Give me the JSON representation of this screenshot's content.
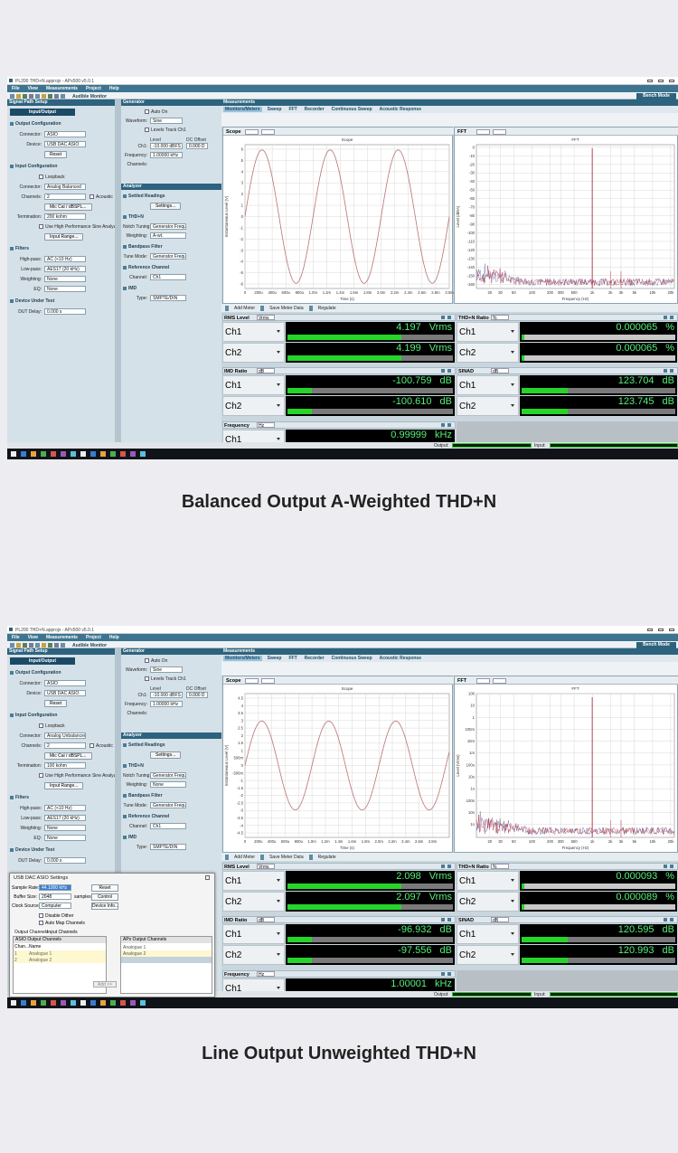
{
  "screens": [
    {
      "title_bar": "PL200 THD+N.approjx - APx500 v5.0.1",
      "menu": [
        "File",
        "View",
        "Measurements",
        "Project",
        "Help"
      ],
      "toolbar": {
        "monitor": "Audible Monitor",
        "bench": "Bench Mode"
      },
      "signal_path": {
        "header": "Signal Path Setup",
        "tab": "Input/Output",
        "rows": [
          {
            "section": "Output Configuration"
          },
          {
            "label": "Connector:",
            "value": "ASIO"
          },
          {
            "label": "Device:",
            "value": "USB DAC ASIO"
          },
          {
            "button": "Reset"
          },
          {
            "section": "Input Configuration"
          },
          {
            "check": "Loopback"
          },
          {
            "label": "Connector:",
            "value": "Analog Balanced"
          },
          {
            "label": "Channels:",
            "value": "2",
            "check": "Acoustic"
          },
          {
            "button": "Mic Cal / dBSPL..."
          },
          {
            "label": "Termination:",
            "value": "200 kohm"
          },
          {
            "check": "Use High Performance Sine Analyzer"
          },
          {
            "button": "Input Range..."
          },
          {
            "section": "Filters"
          },
          {
            "label": "High-pass:",
            "value": "AC (<10 Hz)"
          },
          {
            "label": "Low-pass:",
            "value": "AES17 (20 kHz)"
          },
          {
            "label": "Weighting:",
            "value": "None"
          },
          {
            "label": "EQ:",
            "value": "None"
          },
          {
            "section": "Device Under Test"
          },
          {
            "label": "DUT Delay:",
            "value": "0.000 s"
          }
        ]
      },
      "generator": {
        "header": "Generator",
        "rows": [
          {
            "check": "Auto On"
          },
          {
            "label": "Waveform:",
            "value": "Sine"
          },
          {
            "check": "Levels Track Ch1"
          },
          {
            "columns": [
              "Level",
              "DC Offset"
            ]
          },
          {
            "label": "Ch1:",
            "value": "-10.000 dBFS",
            "value2": "0.000 D"
          },
          {
            "label": "Frequency:",
            "value": "1.00000 kHz"
          },
          {
            "label": "Channels:"
          }
        ]
      },
      "analyzer": {
        "header": "Analyzer",
        "rows": [
          {
            "section": "Settled Readings"
          },
          {
            "button": "Settings..."
          },
          {
            "section": "THD+N"
          },
          {
            "label": "Notch Tuning:",
            "value": "Generator Freque"
          },
          {
            "label": "Weighting:",
            "value": "A-wt."
          },
          {
            "section": "Bandpass Filter"
          },
          {
            "label": "Tune Mode:",
            "value": "Generator Freque"
          },
          {
            "section": "Reference Channel"
          },
          {
            "label": "Channel:",
            "value": "Ch1"
          },
          {
            "section": "IMD"
          },
          {
            "label": "Type:",
            "value": "SMPTE/DIN"
          }
        ]
      },
      "measurements": {
        "header": "Measurements",
        "tabs": [
          "Monitors/Meters",
          "Sweep",
          "FFT",
          "Recorder",
          "Continuous Sweep",
          "Acoustic Response"
        ]
      },
      "scope": {
        "panel": "Scope",
        "title": "Scope",
        "ylabel": "Instantaneous Level (V)",
        "xlabel": "Time (s)",
        "ylim": [
          -6.4,
          6.4
        ],
        "yticks": [
          "6",
          "5",
          "4",
          "3",
          "2",
          "1",
          "0",
          "-1",
          "-2",
          "-3",
          "-4",
          "-5",
          "-6"
        ],
        "xlim": [
          0,
          0.003
        ],
        "xticks": [
          "0",
          "200u",
          "400u",
          "600u",
          "800u",
          "1.0m",
          "1.2m",
          "1.4m",
          "1.6m",
          "1.8m",
          "2.0m",
          "2.2m",
          "2.4m",
          "2.6m",
          "2.8m",
          "3.0m"
        ]
      },
      "fft": {
        "panel": "FFT",
        "title": "FFT",
        "ylabel": "Level (dBrA)",
        "xlabel": "Frequency (Hz)",
        "xscale": "log",
        "yscale": "linear",
        "ylim": [
          -165,
          3
        ],
        "yticks": [
          "0",
          "-10",
          "-20",
          "-30",
          "-40",
          "-50",
          "-60",
          "-70",
          "-80",
          "-90",
          "-100",
          "-110",
          "-120",
          "-130",
          "-140",
          "-150",
          "-160"
        ],
        "xlim": [
          12,
          23000
        ],
        "xticks": [
          "20",
          "30",
          "50",
          "100",
          "200",
          "300",
          "500",
          "1k",
          "2k",
          "3k",
          "5k",
          "10k",
          "20k"
        ]
      },
      "meter_toolbar": [
        "Add Meter",
        "Save Meter Data",
        "Regulate"
      ],
      "meters": [
        {
          "title": "RMS Level",
          "unit": "Vrms",
          "readings": [
            {
              "channel": "Ch1",
              "value": "4.197",
              "unit": "Vrms"
            },
            {
              "channel": "Ch2",
              "value": "4.199",
              "unit": "Vrms"
            }
          ]
        },
        {
          "title": "THD+N Ratio",
          "unit": "%",
          "readings": [
            {
              "channel": "Ch1",
              "value": "0.000065",
              "unit": "%"
            },
            {
              "channel": "Ch2",
              "value": "0.000065",
              "unit": "%"
            }
          ]
        },
        {
          "title": "IMD Ratio",
          "unit": "dB",
          "readings": [
            {
              "channel": "Ch1",
              "value": "-100.759",
              "unit": "dB"
            },
            {
              "channel": "Ch2",
              "value": "-100.610",
              "unit": "dB"
            }
          ]
        },
        {
          "title": "SINAD",
          "unit": "dB",
          "readings": [
            {
              "channel": "Ch1",
              "value": "123.704",
              "unit": "dB"
            },
            {
              "channel": "Ch2",
              "value": "123.745",
              "unit": "dB"
            }
          ]
        },
        {
          "title": "Frequency",
          "unit": "Hz",
          "readings": [
            {
              "channel": "Ch1",
              "value": "0.99999",
              "unit": "kHz"
            }
          ]
        }
      ],
      "status": {
        "output": "Output:",
        "input": "Input:"
      }
    },
    {
      "title_bar": "PL200 THD+N.approjx - APx500 v5.0.1",
      "menu": [
        "File",
        "View",
        "Measurements",
        "Project",
        "Help"
      ],
      "toolbar": {
        "monitor": "Audible Monitor",
        "bench": "Bench Mode"
      },
      "signal_path": {
        "header": "Signal Path Setup",
        "tab": "Input/Output",
        "rows": [
          {
            "section": "Output Configuration"
          },
          {
            "label": "Connector:",
            "value": "ASIO"
          },
          {
            "label": "Device:",
            "value": "USB DAC ASIO"
          },
          {
            "button": "Reset"
          },
          {
            "section": "Input Configuration"
          },
          {
            "check": "Loopback"
          },
          {
            "label": "Connector:",
            "value": "Analog Unbalanced"
          },
          {
            "label": "Channels:",
            "value": "2",
            "check": "Acoustic"
          },
          {
            "button": "Mic Cal / dBSPL..."
          },
          {
            "label": "Termination:",
            "value": "100 kohm"
          },
          {
            "check": "Use High Performance Sine Analyzer"
          },
          {
            "button": "Input Range..."
          },
          {
            "section": "Filters"
          },
          {
            "label": "High-pass:",
            "value": "AC (<10 Hz)"
          },
          {
            "label": "Low-pass:",
            "value": "AES17 (20 kHz)"
          },
          {
            "label": "Weighting:",
            "value": "None"
          },
          {
            "label": "EQ:",
            "value": "None"
          },
          {
            "section": "Device Under Test"
          },
          {
            "label": "DUT Delay:",
            "value": "0.000 s"
          }
        ]
      },
      "generator": {
        "header": "Generator",
        "rows": [
          {
            "check": "Auto On"
          },
          {
            "label": "Waveform:",
            "value": "Sine"
          },
          {
            "check": "Levels Track Ch1"
          },
          {
            "columns": [
              "Level",
              "DC Offset"
            ]
          },
          {
            "label": "Ch1:",
            "value": "-10.000 dBFS",
            "value2": "0.000 D"
          },
          {
            "label": "Frequency:",
            "value": "1.00000 kHz"
          },
          {
            "label": "Channels:"
          }
        ]
      },
      "analyzer": {
        "header": "Analyzer",
        "rows": [
          {
            "section": "Settled Readings"
          },
          {
            "button": "Settings..."
          },
          {
            "section": "THD+N"
          },
          {
            "label": "Notch Tuning:",
            "value": "Generator Freque"
          },
          {
            "label": "Weighting:",
            "value": "None"
          },
          {
            "section": "Bandpass Filter"
          },
          {
            "label": "Tune Mode:",
            "value": "Generator Freque"
          },
          {
            "section": "Reference Channel"
          },
          {
            "label": "Channel:",
            "value": "Ch1"
          },
          {
            "section": "IMD"
          },
          {
            "label": "Type:",
            "value": "SMPTE/DIN"
          }
        ]
      },
      "measurements": {
        "header": "Measurements",
        "tabs": [
          "Monitors/Meters",
          "Sweep",
          "FFT",
          "Recorder",
          "Continuous Sweep",
          "Acoustic Response"
        ]
      },
      "scope": {
        "panel": "Scope",
        "title": "Scope",
        "ylabel": "Instantaneous Level (V)",
        "xlabel": "Time (s)",
        "ylim": [
          -4.8,
          4.8
        ],
        "yticks": [
          "4.5",
          "4",
          "3.5",
          "3",
          "2.5",
          "2",
          "1.5",
          "1",
          "500m",
          "0",
          "-500m",
          "-1",
          "-1.5",
          "-2",
          "-2.5",
          "-3",
          "-3.5",
          "-4",
          "-4.5"
        ],
        "xlim": [
          0,
          0.00305
        ],
        "xticks": [
          "0",
          "200u",
          "400u",
          "600u",
          "800u",
          "1.0m",
          "1.2m",
          "1.4m",
          "1.6m",
          "1.8m",
          "2.0m",
          "2.2m",
          "2.4m",
          "2.6m",
          "2.8m"
        ]
      },
      "fft": {
        "panel": "FFT",
        "title": "FFT",
        "ylabel": "Level (Vrms)",
        "xlabel": "Frequency (Hz)",
        "xscale": "log",
        "yscale": "log",
        "ylim": [
          8e-11,
          100
        ],
        "yticks": [
          "100",
          "10",
          "1",
          "100m",
          "10m",
          "1m",
          "100u",
          "10u",
          "1u",
          "100n",
          "10n",
          "1n"
        ],
        "xlim": [
          12,
          23000
        ],
        "xticks": [
          "20",
          "30",
          "50",
          "100",
          "200",
          "300",
          "500",
          "1k",
          "2k",
          "3k",
          "5k",
          "10k",
          "20k"
        ]
      },
      "meter_toolbar": [
        "Add Meter",
        "Save Meter Data",
        "Regulate"
      ],
      "meters": [
        {
          "title": "RMS Level",
          "unit": "Vrms",
          "readings": [
            {
              "channel": "Ch1",
              "value": "2.098",
              "unit": "Vrms"
            },
            {
              "channel": "Ch2",
              "value": "2.097",
              "unit": "Vrms"
            }
          ]
        },
        {
          "title": "THD+N Ratio",
          "unit": "%",
          "readings": [
            {
              "channel": "Ch1",
              "value": "0.000093",
              "unit": "%"
            },
            {
              "channel": "Ch2",
              "value": "0.000089",
              "unit": "%"
            }
          ]
        },
        {
          "title": "IMD Ratio",
          "unit": "dB",
          "readings": [
            {
              "channel": "Ch1",
              "value": "-96.932",
              "unit": "dB"
            },
            {
              "channel": "Ch2",
              "value": "-97.556",
              "unit": "dB"
            }
          ]
        },
        {
          "title": "SINAD",
          "unit": "dB",
          "readings": [
            {
              "channel": "Ch1",
              "value": "120.595",
              "unit": "dB"
            },
            {
              "channel": "Ch2",
              "value": "120.993",
              "unit": "dB"
            }
          ]
        },
        {
          "title": "Frequency",
          "unit": "Hz",
          "readings": [
            {
              "channel": "Ch1",
              "value": "1.00001",
              "unit": "kHz"
            }
          ]
        }
      ],
      "status": {
        "output": "Output:",
        "input": "Input:"
      },
      "dialog": {
        "title": "USB DAC ASIO Settings",
        "rows": [
          {
            "label": "Sample Rate:",
            "value": "44.1000 kHz",
            "button": "Reset"
          },
          {
            "label": "Buffer Size:",
            "value": "2048",
            "suffix": "samples",
            "button": "Control"
          },
          {
            "label": "Clock Source:",
            "value": "Computer",
            "button": "Device Info..."
          }
        ],
        "checks": [
          "Disable Dither",
          "Auto Map Channels"
        ],
        "tabs": [
          "Output Channels",
          "Input Channels"
        ],
        "left_table": {
          "title": "ASIO Output Channels",
          "columns": [
            "Chan...",
            "Name"
          ],
          "rows": [
            [
              "1",
              "Analogue 1"
            ],
            [
              "2",
              "Analogue 2"
            ]
          ]
        },
        "right_table": {
          "title": "APx Output Channels",
          "rows": [
            "Analogue 1",
            "Analogue 2"
          ]
        },
        "add": "Add >>"
      }
    }
  ],
  "captions": [
    "Balanced Output A-Weighted THD+N",
    "Line Output Unweighted THD+N"
  ]
}
